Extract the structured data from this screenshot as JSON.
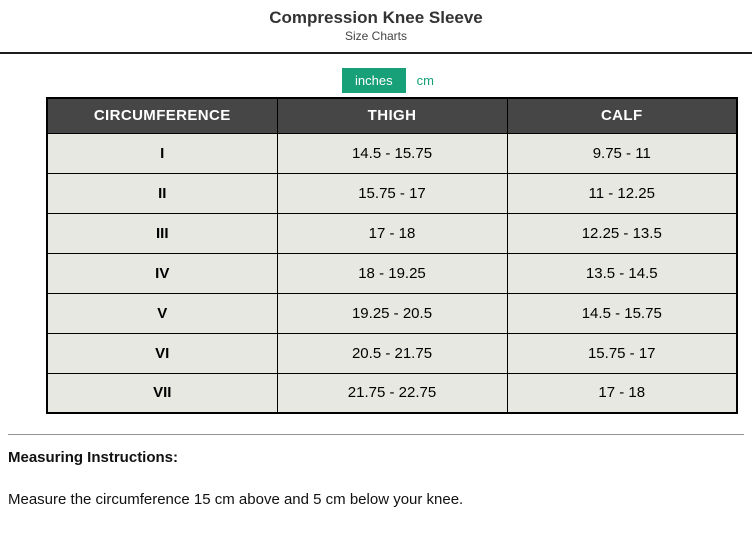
{
  "header": {
    "title": "Compression Knee Sleeve",
    "subtitle": "Size Charts"
  },
  "unit_toggle": {
    "selected": "inches",
    "options": [
      {
        "label": "inches",
        "selected": true
      },
      {
        "label": "cm",
        "selected": false
      }
    ],
    "accent_color": "#18a078"
  },
  "size_chart": {
    "columns": [
      "CIRCUMFERENCE",
      "THIGH",
      "CALF"
    ],
    "rows": [
      {
        "size": "I",
        "thigh": "14.5 - 15.75",
        "calf": "9.75 - 11"
      },
      {
        "size": "II",
        "thigh": "15.75 - 17",
        "calf": "11 - 12.25"
      },
      {
        "size": "III",
        "thigh": "17 - 18",
        "calf": "12.25 - 13.5"
      },
      {
        "size": "IV",
        "thigh": "18 - 19.25",
        "calf": "13.5 - 14.5"
      },
      {
        "size": "V",
        "thigh": "19.25 - 20.5",
        "calf": "14.5 - 15.75"
      },
      {
        "size": "VI",
        "thigh": "20.5 - 21.75",
        "calf": "15.75 - 17"
      },
      {
        "size": "VII",
        "thigh": "21.75 - 22.75",
        "calf": "17 - 18"
      }
    ],
    "header_bg_color": "#464646",
    "row_bg_color": "#e8e8e2"
  },
  "instructions": {
    "heading": "Measuring Instructions:",
    "body": "Measure the circumference 15 cm above and 5 cm below your knee."
  }
}
